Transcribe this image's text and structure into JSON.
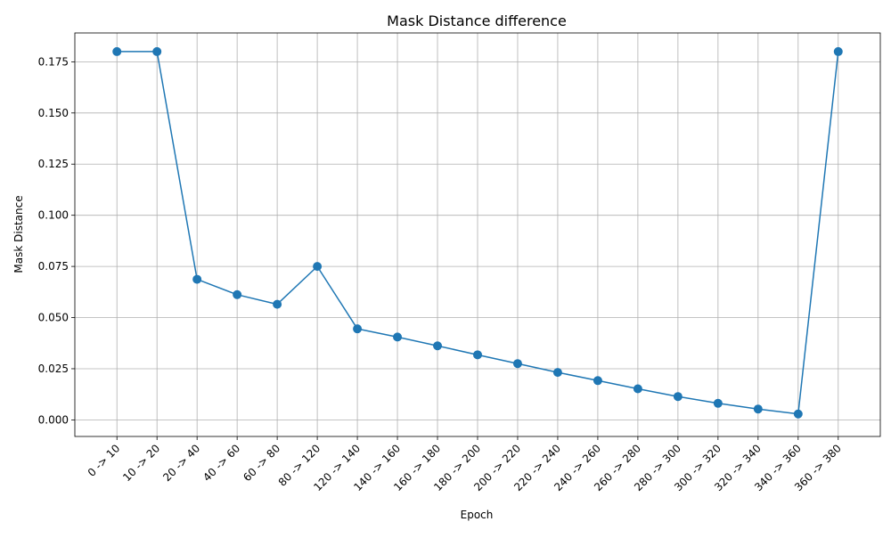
{
  "chart_data": {
    "type": "line",
    "title": "Mask Distance difference",
    "xlabel": "Epoch",
    "ylabel": "Mask Distance",
    "categories": [
      "0 -> 10",
      "10 -> 20",
      "20 -> 40",
      "40 -> 60",
      "60 -> 80",
      "80 -> 120",
      "120 -> 140",
      "140 -> 160",
      "160 -> 180",
      "180 -> 200",
      "200 -> 220",
      "220 -> 240",
      "240 -> 260",
      "260 -> 280",
      "280 -> 300",
      "300 -> 320",
      "320 -> 340",
      "340 -> 360",
      "360 -> 380"
    ],
    "series": [
      {
        "values": [
          0.18,
          0.18,
          0.0687,
          0.0612,
          0.0565,
          0.075,
          0.0445,
          0.0405,
          0.0362,
          0.0318,
          0.0275,
          0.0232,
          0.0192,
          0.0152,
          0.0114,
          0.0081,
          0.0053,
          0.0029,
          0.18
        ],
        "color": "#1f77b4",
        "marker": "circle"
      }
    ],
    "yticks": [
      "0.000",
      "0.025",
      "0.050",
      "0.075",
      "0.100",
      "0.125",
      "0.150",
      "0.175"
    ],
    "ylim": [
      -0.0081,
      0.1891
    ],
    "grid": true,
    "legend": "none"
  }
}
